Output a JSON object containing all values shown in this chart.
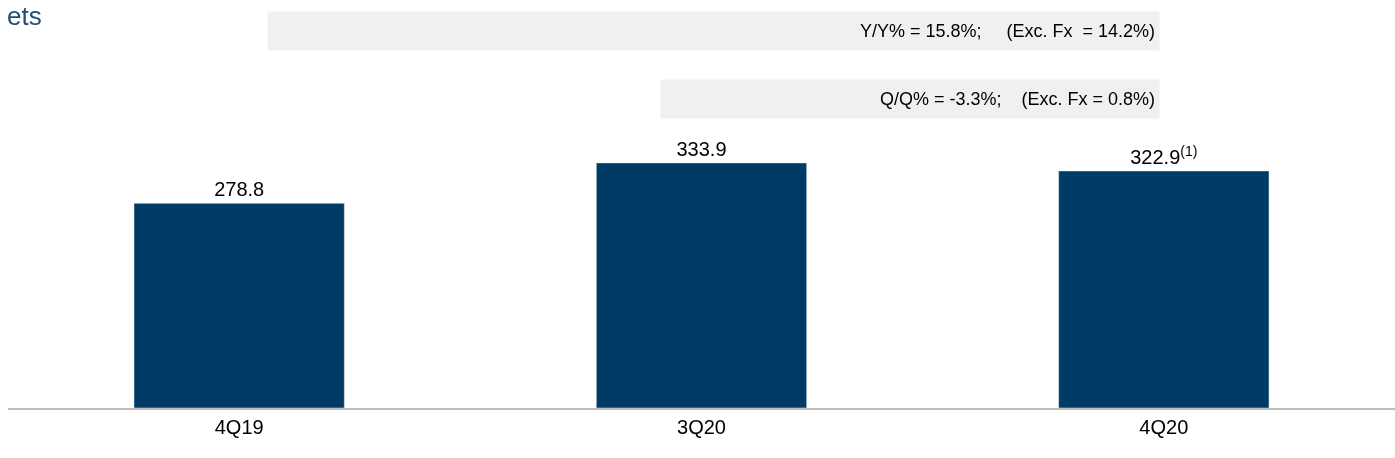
{
  "chart_data": {
    "type": "bar",
    "title": "ets",
    "categories": [
      "4Q19",
      "3Q20",
      "4Q20"
    ],
    "values": [
      278.8,
      333.9,
      322.9
    ],
    "color": "#003b66",
    "value_labels": [
      "278.8",
      "333.9",
      "322.9$^{(1)}$"
    ],
    "annotations": [
      "Y/Y% = 15.8%;     (Exc. Fx  = 14.2%)",
      "Q/Q% = -3.3%;    (Exc. Fx = 0.8%)"
    ]
  }
}
